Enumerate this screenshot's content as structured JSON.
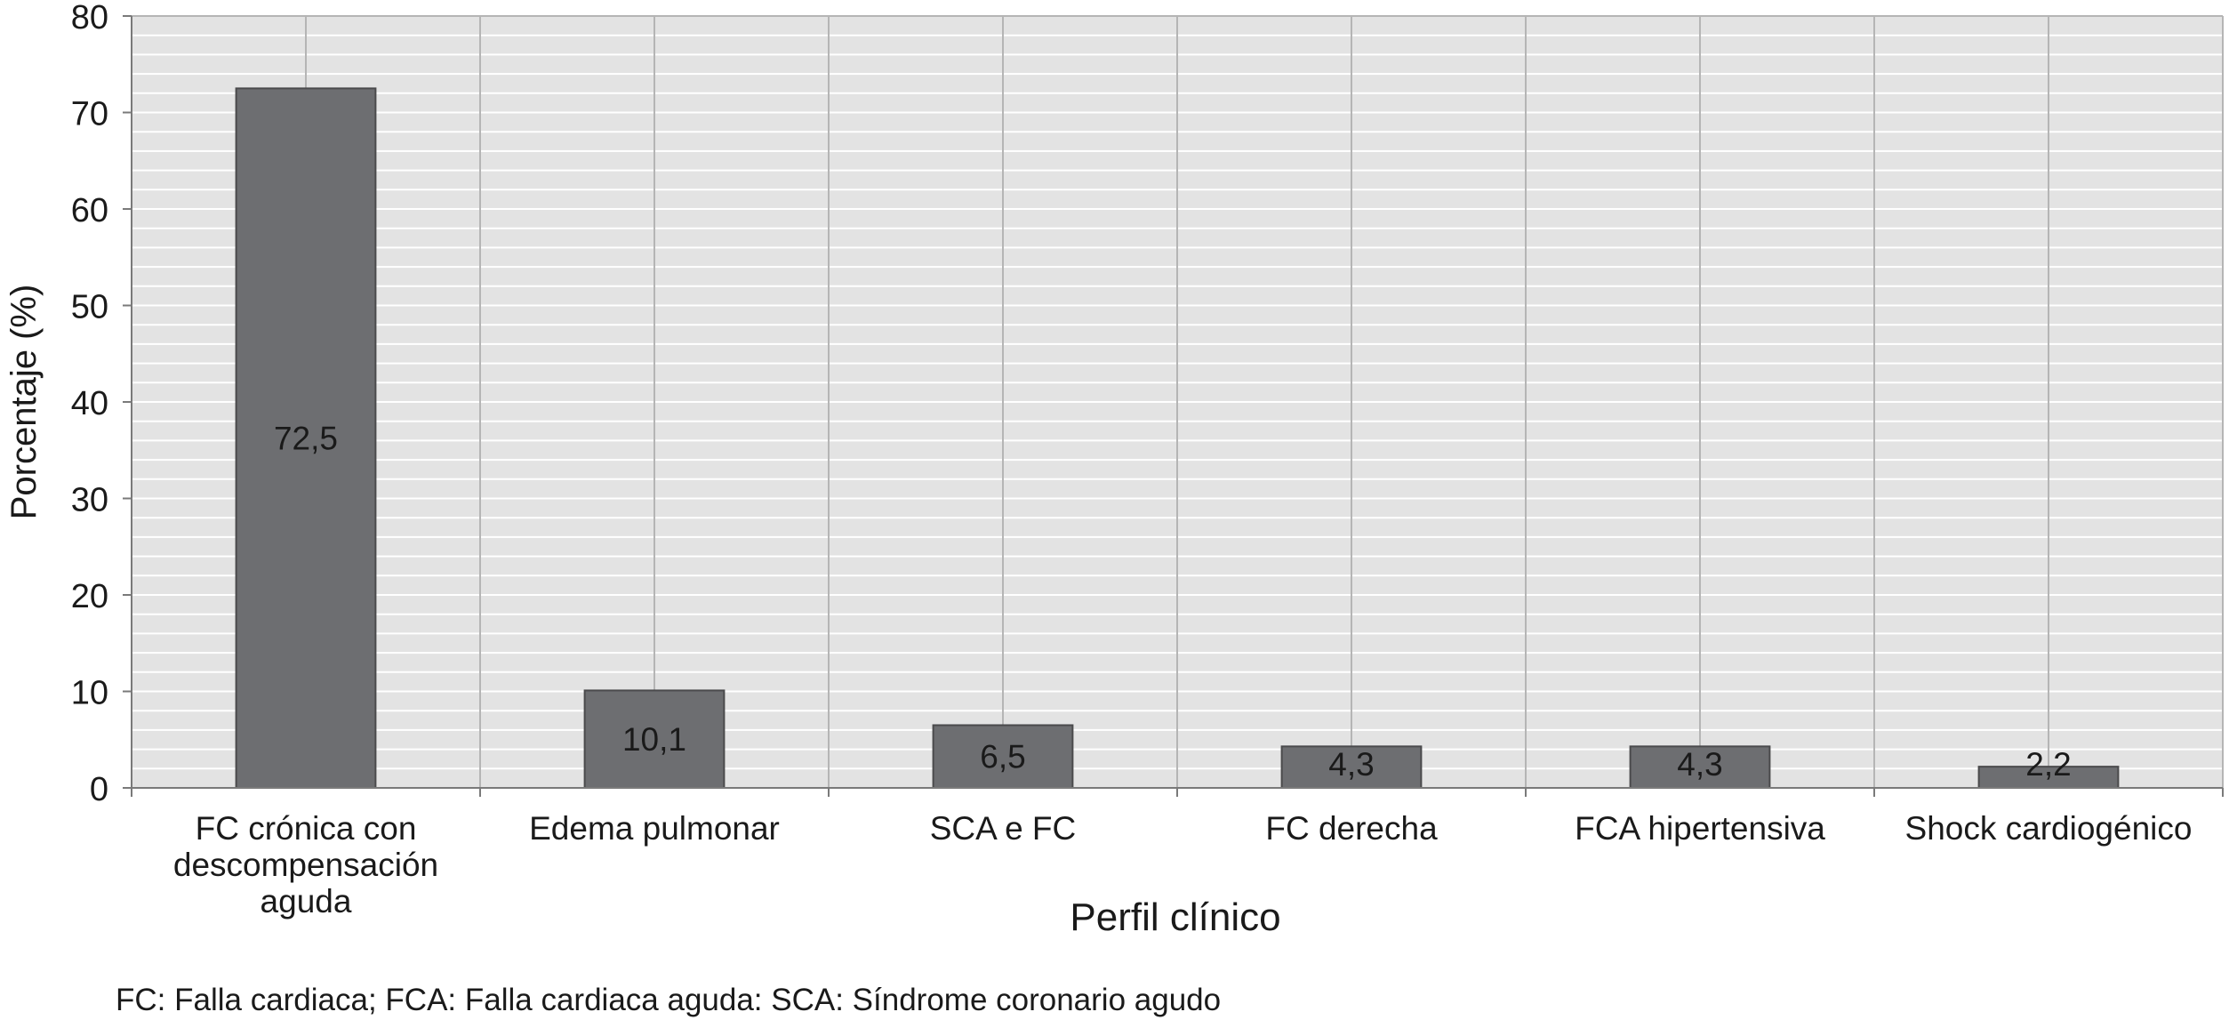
{
  "chart_data": {
    "type": "bar",
    "categories": [
      [
        "FC crónica con",
        "descompensación",
        "aguda"
      ],
      [
        "Edema pulmonar"
      ],
      [
        "SCA e FC"
      ],
      [
        "FC derecha"
      ],
      [
        "FCA hipertensiva"
      ],
      [
        "Shock cardiogénico"
      ]
    ],
    "values": [
      72.5,
      10.1,
      6.5,
      4.3,
      4.3,
      2.2
    ],
    "data_labels": [
      "72,5",
      "10,1",
      "6,5",
      "4,3",
      "4,3",
      "2,2"
    ],
    "xlabel": "Perfil clínico",
    "ylabel": "Porcentaje (%)",
    "ylim": [
      0,
      80
    ],
    "yticks": [
      0,
      10,
      20,
      30,
      40,
      50,
      60,
      70,
      80
    ],
    "minor_grid_step": 2,
    "grid": true,
    "colors": {
      "bar": "#6d6e71",
      "bar_stroke": "#4a4a4c",
      "plot_bg": "#e3e3e3",
      "grid": "#ffffff",
      "vgrid": "#b5b5b5",
      "axis": "#7a7a7a"
    }
  },
  "footnote": "FC: Falla cardiaca; FCA: Falla cardiaca aguda: SCA: Síndrome coronario agudo"
}
